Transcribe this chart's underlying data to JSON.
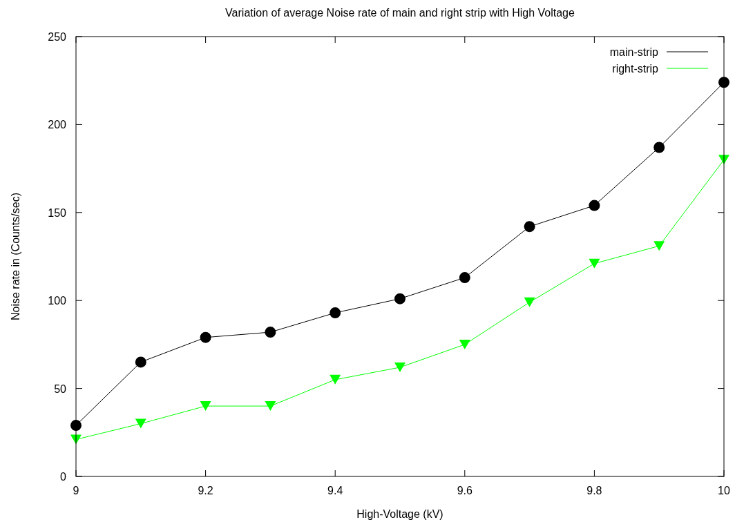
{
  "chart_data": {
    "type": "line",
    "title": "Variation of average Noise rate of main and right strip with High Voltage",
    "xlabel": "High-Voltage (kV)",
    "ylabel": "Noise rate in (Counts/sec)",
    "x": [
      9,
      9.1,
      9.2,
      9.3,
      9.4,
      9.5,
      9.6,
      9.7,
      9.8,
      9.9,
      10
    ],
    "series": [
      {
        "name": "main-strip",
        "color": "#000000",
        "marker": "circle",
        "values": [
          29,
          65,
          79,
          82,
          93,
          101,
          113,
          142,
          154,
          187,
          224
        ]
      },
      {
        "name": "right-strip",
        "color": "#00ff00",
        "marker": "triangle",
        "values": [
          21,
          30,
          40,
          40,
          55,
          62,
          75,
          99,
          121,
          131,
          180
        ]
      }
    ],
    "xlim": [
      9,
      10
    ],
    "xticks": [
      9,
      9.2,
      9.4,
      9.6,
      9.8,
      10
    ],
    "ylim": [
      0,
      250
    ],
    "yticks": [
      0,
      50,
      100,
      150,
      200,
      250
    ],
    "grid": false,
    "legend": "top right"
  }
}
